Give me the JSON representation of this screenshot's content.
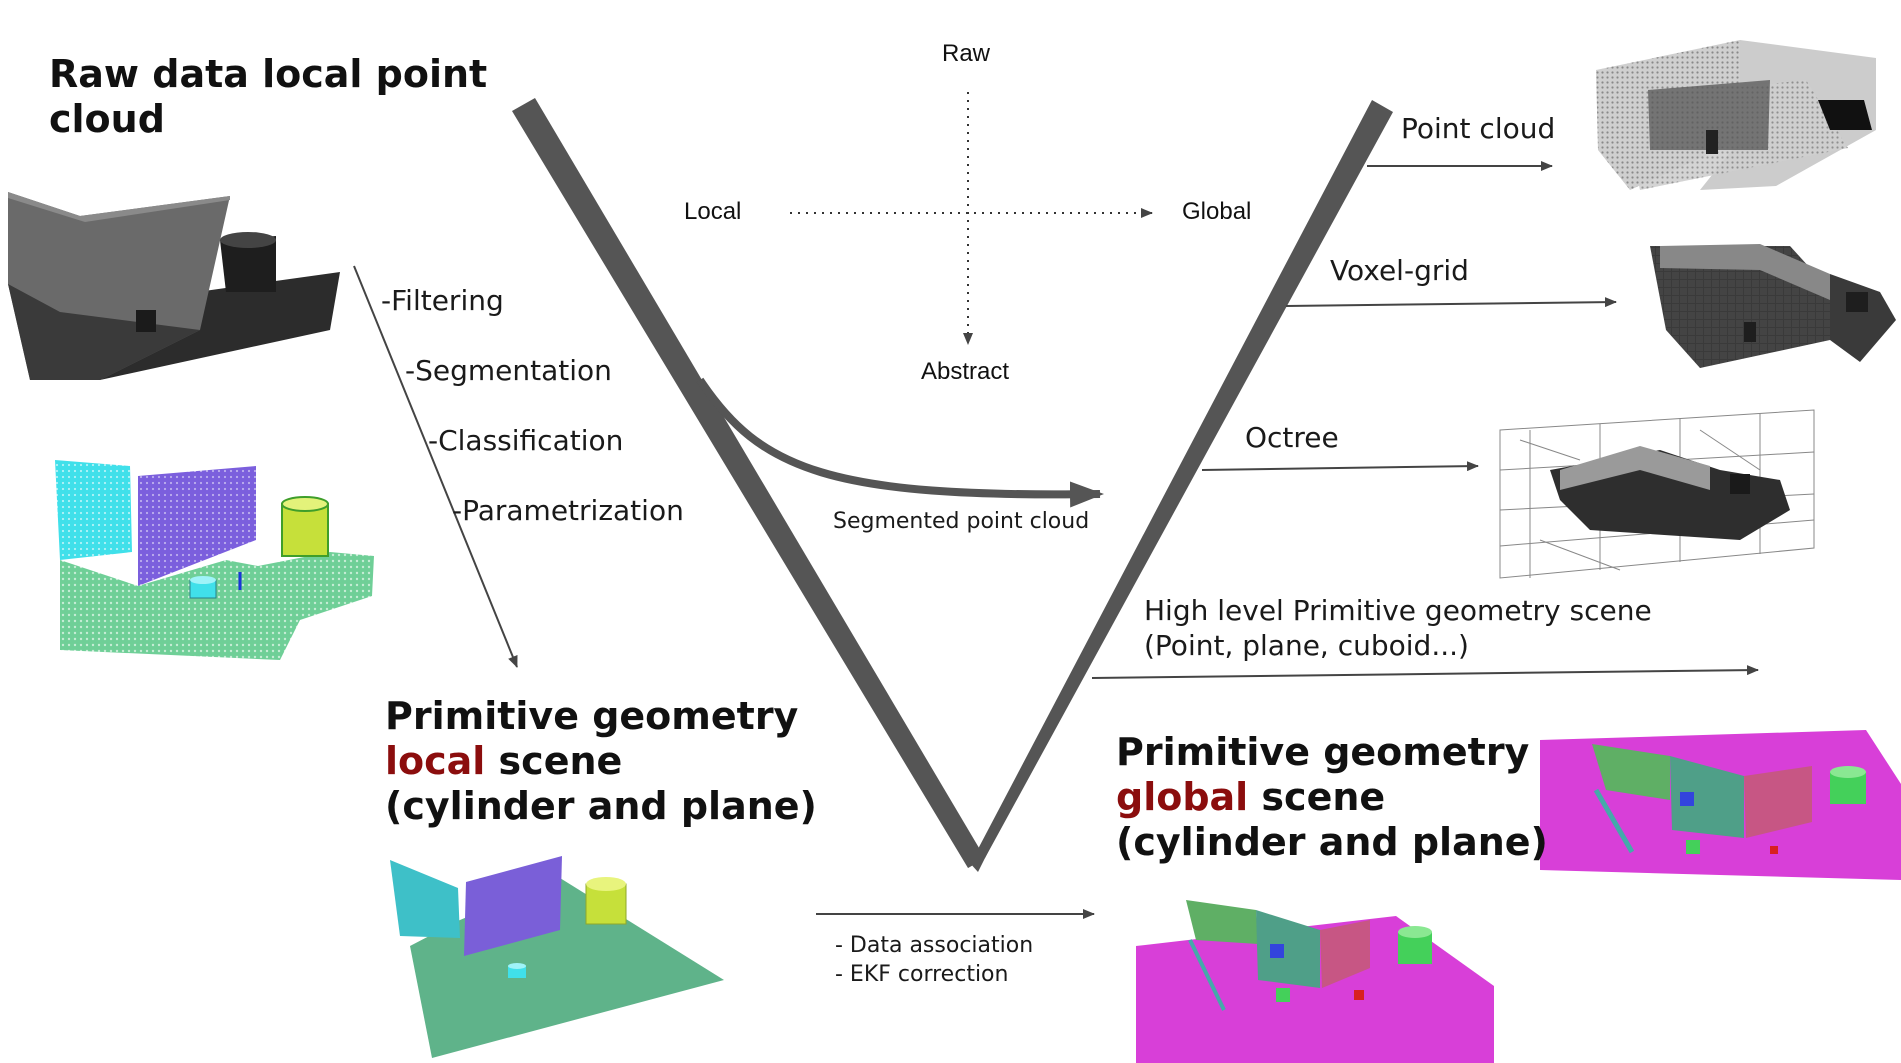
{
  "headings": {
    "raw": {
      "line1": "Raw data local point",
      "line2": "cloud"
    },
    "local": {
      "line1": "Primitive geometry",
      "accent": "local",
      "rest": " scene",
      "line3": "(cylinder and plane)"
    },
    "global": {
      "line1": "Primitive geometry",
      "accent": "global",
      "rest": " scene",
      "line3": "(cylinder and plane)"
    }
  },
  "axes": {
    "raw": "Raw",
    "local": "Local",
    "global": "Global",
    "abstract": "Abstract"
  },
  "processing_steps": [
    "-Filtering",
    "-Segmentation",
    "-Classification",
    "-Parametrization"
  ],
  "representations": {
    "point_cloud": "Point cloud",
    "voxel_grid": "Voxel-grid",
    "octree": "Octree",
    "segmented": "Segmented point cloud",
    "high_level_line1": "High level Primitive geometry scene",
    "high_level_line2": "(Point, plane, cuboid...)"
  },
  "fusion": {
    "step1": "- Data association",
    "step2": "- EKF correction"
  },
  "colors": {
    "v_shape": "#555555",
    "accent_text": "#8b0d0d",
    "cyan_plane": "#3fd9e6",
    "purple_plane": "#7b5fdd",
    "ground_green": "#6fcf97",
    "cylinder_yellow": "#c6e03a",
    "magenta_floor": "#d83fd8",
    "wall_green": "#5fa865"
  },
  "icons": [
    "point-cloud-thumbnail",
    "voxel-grid-thumbnail",
    "octree-thumbnail"
  ]
}
